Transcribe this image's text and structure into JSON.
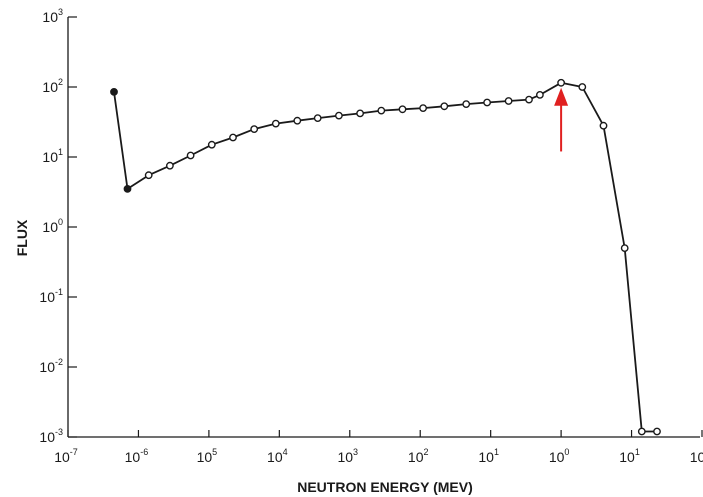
{
  "chart_data": {
    "type": "line",
    "title": "",
    "xlabel": "NEUTRON ENERGY (MEV)",
    "ylabel": "FLUX",
    "x_scale": "log",
    "y_scale": "log",
    "xlim": [
      1e-07,
      100
    ],
    "ylim": [
      0.001,
      1000
    ],
    "grid": false,
    "x_ticks": [
      {
        "base": "10",
        "exp": "-7"
      },
      {
        "base": "10",
        "exp": "-6"
      },
      {
        "base": "10",
        "exp": "5"
      },
      {
        "base": "10",
        "exp": "4"
      },
      {
        "base": "10",
        "exp": "3"
      },
      {
        "base": "10",
        "exp": "2"
      },
      {
        "base": "10",
        "exp": "1"
      },
      {
        "base": "10",
        "exp": "0"
      },
      {
        "base": "10",
        "exp": "1"
      },
      {
        "base": "10",
        "exp": "2"
      }
    ],
    "y_ticks": [
      {
        "base": "10",
        "exp": "3"
      },
      {
        "base": "10",
        "exp": "2"
      },
      {
        "base": "10",
        "exp": "1"
      },
      {
        "base": "10",
        "exp": "0"
      },
      {
        "base": "10",
        "exp": "-1"
      },
      {
        "base": "10",
        "exp": "-2"
      },
      {
        "base": "10",
        "exp": "-3"
      }
    ],
    "series": [
      {
        "x": [
          4.5e-07,
          7e-07,
          1.4e-06,
          2.8e-06,
          5.5e-06,
          1.1e-05,
          2.2e-05,
          4.4e-05,
          8.9e-05,
          0.00018,
          0.00035,
          0.0007,
          0.0014,
          0.0028,
          0.0056,
          0.011,
          0.022,
          0.045,
          0.089,
          0.18,
          0.35,
          0.5,
          1.0,
          2.0,
          4.0,
          8.0,
          14.0,
          23.0
        ],
        "y": [
          85,
          3.5,
          5.5,
          7.5,
          10.5,
          15,
          19,
          25,
          30,
          33,
          36,
          39,
          42,
          46,
          48,
          50,
          53,
          57,
          60,
          63,
          66,
          77,
          115,
          100,
          28,
          0.5,
          0.0012,
          0.0012
        ],
        "marker": "open-circle",
        "color": "#1a1a1a"
      }
    ],
    "annotations": [
      {
        "type": "arrow",
        "x": 1.0,
        "y_from": 12,
        "y_to": 80,
        "color": "#e02020"
      }
    ]
  }
}
